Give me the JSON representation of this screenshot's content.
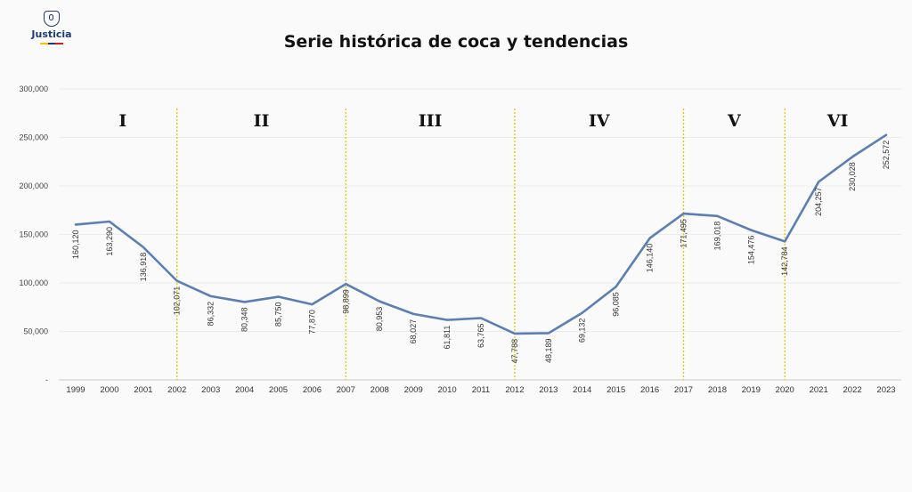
{
  "logo": {
    "text": "Justicia",
    "icon": "shield-emblem-icon",
    "flag_colors": [
      "#f2c500",
      "#1f3b73",
      "#d21f2b"
    ]
  },
  "colors": {
    "line": "#5b7fb5",
    "divider": "#e3c800",
    "grid": "#dddddd"
  },
  "chart_data": {
    "type": "line",
    "title": "Serie histórica de coca y tendencias",
    "x": [
      "1999",
      "2000",
      "2001",
      "2002",
      "2003",
      "2004",
      "2005",
      "2006",
      "2007",
      "2008",
      "2009",
      "2010",
      "2011",
      "2012",
      "2013",
      "2014",
      "2015",
      "2016",
      "2017",
      "2018",
      "2019",
      "2020",
      "2021",
      "2022",
      "2023"
    ],
    "series": [
      {
        "values": [
          160120,
          163290,
          136918,
          102071,
          86332,
          80348,
          85750,
          77870,
          98899,
          80953,
          68027,
          61811,
          63765,
          47788,
          48189,
          69132,
          96085,
          146140,
          171495,
          169018,
          154476,
          142784,
          204257,
          230028,
          252572
        ],
        "labels": [
          "160,120",
          "163,290",
          "136,918",
          "102,071",
          "86,332",
          "80,348",
          "85,750",
          "77,870",
          "98,899",
          "80,953",
          "68,027",
          "61,811",
          "63,765",
          "47,788",
          "48,189",
          "69,132",
          "96,085",
          "146,140",
          "171,495",
          "169,018",
          "154,476",
          "142,784",
          "204,257",
          "230,028",
          "252,572"
        ]
      }
    ],
    "yticks": [
      "-",
      "50,000",
      "100,000",
      "150,000",
      "200,000",
      "250,000",
      "300,000"
    ],
    "ylim": [
      0,
      300000
    ],
    "grid": true,
    "dividers": [
      "2002",
      "2007",
      "2012",
      "2017",
      "2020"
    ],
    "periods": [
      "I",
      "II",
      "III",
      "IV",
      "V",
      "VI"
    ]
  }
}
